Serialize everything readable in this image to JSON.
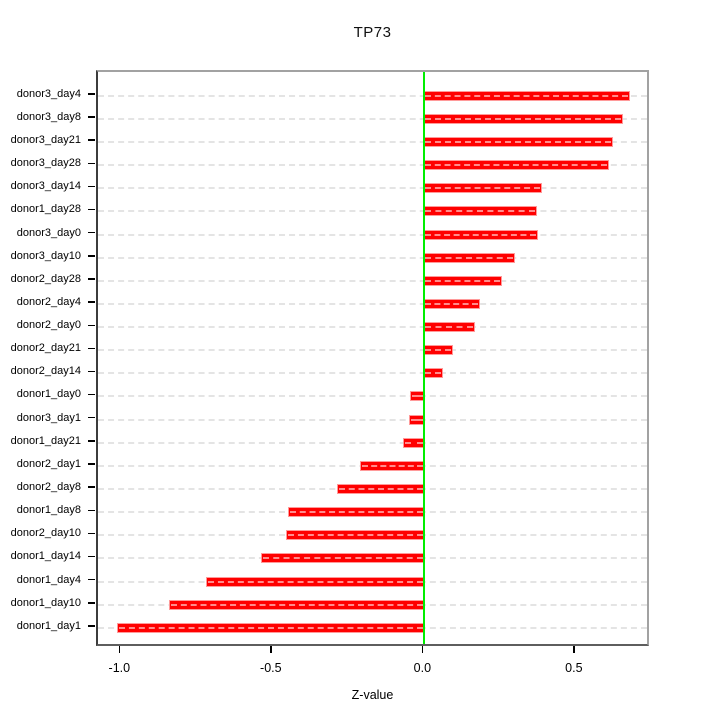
{
  "title": "TP73",
  "chart_data": {
    "type": "bar",
    "orientation": "horizontal",
    "title": "TP73",
    "xlabel": "Z-value",
    "ylabel": "",
    "legend": false,
    "grid": true,
    "categories": [
      "donor3_day4",
      "donor3_day8",
      "donor3_day21",
      "donor3_day28",
      "donor3_day14",
      "donor1_day28",
      "donor3_day0",
      "donor3_day10",
      "donor2_day28",
      "donor2_day4",
      "donor2_day0",
      "donor2_day21",
      "donor2_day14",
      "donor1_day0",
      "donor3_day1",
      "donor1_day21",
      "donor2_day1",
      "donor2_day8",
      "donor1_day8",
      "donor2_day10",
      "donor1_day14",
      "donor1_day4",
      "donor1_day10",
      "donor1_day1"
    ],
    "values": [
      0.676,
      0.652,
      0.62,
      0.605,
      0.385,
      0.368,
      0.371,
      0.296,
      0.252,
      0.181,
      0.163,
      0.092,
      0.058,
      -0.043,
      -0.046,
      -0.067,
      -0.21,
      -0.286,
      -0.447,
      -0.452,
      -0.536,
      -0.717,
      -0.838,
      -1.012
    ],
    "xlim": [
      -1.077,
      0.748
    ],
    "xticks": [
      -1.0,
      -0.5,
      0.0,
      0.5
    ],
    "xtick_labels": [
      "-1.0",
      "-0.5",
      "0.0",
      "0.5"
    ],
    "colors": {
      "bar": "#ff0000",
      "zero_line": "#00ee00",
      "grid": "#e4e4e4",
      "box": "#a2a2a2",
      "text": "#000000"
    }
  }
}
